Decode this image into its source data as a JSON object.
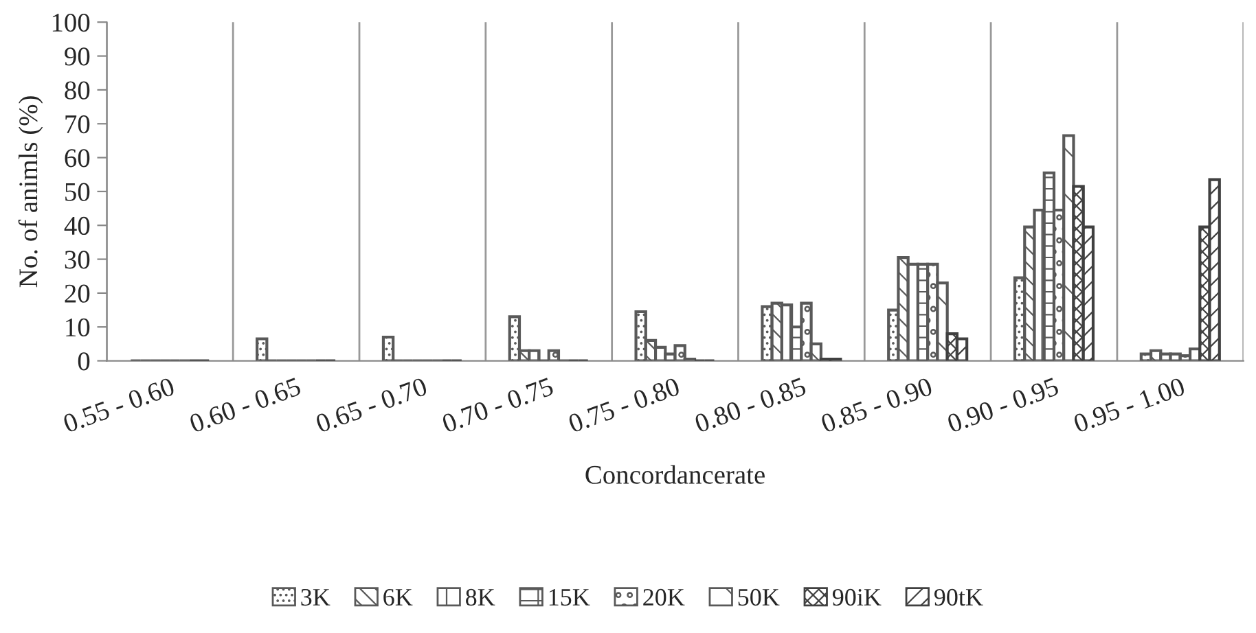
{
  "chart_data": {
    "type": "bar",
    "xlabel": "Concordancerate",
    "ylabel": "No. of animls (%)",
    "categories": [
      "0.55 - 0.60",
      "0.60 - 0.65",
      "0.65 - 0.70",
      "0.70 - 0.75",
      "0.75 - 0.80",
      "0.80 - 0.85",
      "0.85 - 0.90",
      "0.90 - 0.95",
      "0.95 - 1.00"
    ],
    "series": [
      {
        "name": "3K",
        "color": "#595959",
        "values": [
          0,
          6.5,
          7,
          13,
          14.5,
          16,
          15,
          24.5,
          2
        ]
      },
      {
        "name": "6K",
        "color": "#595959",
        "values": [
          0,
          0,
          0,
          3,
          6,
          17,
          30.5,
          39.5,
          3
        ]
      },
      {
        "name": "8K",
        "color": "#595959",
        "values": [
          0,
          0,
          0,
          3,
          4,
          16.5,
          28.5,
          44.5,
          2
        ]
      },
      {
        "name": "15K",
        "color": "#595959",
        "values": [
          0,
          0,
          0,
          0,
          2,
          10,
          28.5,
          55.5,
          2
        ]
      },
      {
        "name": "20K",
        "color": "#595959",
        "values": [
          0,
          0,
          0,
          3,
          4.5,
          17,
          28.5,
          44.5,
          1.5
        ]
      },
      {
        "name": "50K",
        "color": "#595959",
        "values": [
          0,
          0,
          0,
          0,
          0.5,
          5,
          23,
          66.5,
          3.5
        ]
      },
      {
        "name": "90iK",
        "color": "#404040",
        "values": [
          0,
          0,
          0,
          0,
          0,
          0.5,
          8,
          51.5,
          39.5
        ]
      },
      {
        "name": "90tK",
        "color": "#404040",
        "values": [
          0,
          0,
          0,
          0,
          0,
          0.5,
          6.5,
          39.5,
          53.5
        ]
      }
    ],
    "ylim": [
      0,
      100
    ],
    "yticks": [
      0,
      10,
      20,
      30,
      40,
      50,
      60,
      70,
      80,
      90,
      100
    ],
    "grid": "x",
    "legend": "bottom"
  }
}
